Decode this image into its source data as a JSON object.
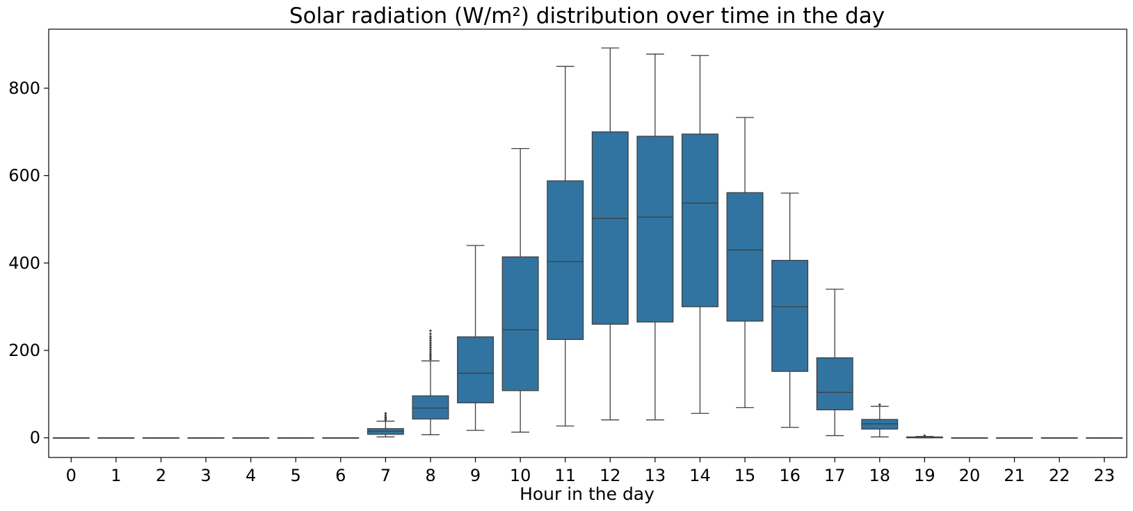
{
  "chart_data": {
    "type": "box",
    "title": "Solar radiation (W/m²) distribution over time in the day",
    "xlabel": "Hour in the day",
    "ylabel": "",
    "ylim": [
      -45,
      935
    ],
    "yticks": [
      0,
      200,
      400,
      600,
      800
    ],
    "grid": false,
    "box_color": "#3274a1",
    "line_color": "#3f3f3f",
    "categories": [
      "0",
      "1",
      "2",
      "3",
      "4",
      "5",
      "6",
      "7",
      "8",
      "9",
      "10",
      "11",
      "12",
      "13",
      "14",
      "15",
      "16",
      "17",
      "18",
      "19",
      "20",
      "21",
      "22",
      "23"
    ],
    "boxes": [
      {
        "whislo": 0,
        "q1": 0,
        "med": 0,
        "q3": 0,
        "whishi": 0,
        "fliers": []
      },
      {
        "whislo": 0,
        "q1": 0,
        "med": 0,
        "q3": 0,
        "whishi": 0,
        "fliers": []
      },
      {
        "whislo": 0,
        "q1": 0,
        "med": 0,
        "q3": 0,
        "whishi": 0,
        "fliers": []
      },
      {
        "whislo": 0,
        "q1": 0,
        "med": 0,
        "q3": 0,
        "whishi": 0,
        "fliers": []
      },
      {
        "whislo": 0,
        "q1": 0,
        "med": 0,
        "q3": 0,
        "whishi": 0,
        "fliers": []
      },
      {
        "whislo": 0,
        "q1": 0,
        "med": 0,
        "q3": 0,
        "whishi": 0,
        "fliers": []
      },
      {
        "whislo": 0,
        "q1": 0,
        "med": 0,
        "q3": 0,
        "whishi": 0,
        "fliers": []
      },
      {
        "whislo": 2,
        "q1": 8,
        "med": 15,
        "q3": 21,
        "whishi": 38,
        "fliers": [
          41,
          44,
          47,
          51,
          56
        ]
      },
      {
        "whislo": 7,
        "q1": 43,
        "med": 68,
        "q3": 96,
        "whishi": 176,
        "fliers": [
          180,
          184,
          188,
          192,
          197,
          202,
          207,
          212,
          217,
          222,
          227,
          232,
          238,
          245
        ]
      },
      {
        "whislo": 17,
        "q1": 80,
        "med": 148,
        "q3": 231,
        "whishi": 440,
        "fliers": []
      },
      {
        "whislo": 13,
        "q1": 108,
        "med": 247,
        "q3": 414,
        "whishi": 662,
        "fliers": []
      },
      {
        "whislo": 27,
        "q1": 225,
        "med": 403,
        "q3": 588,
        "whishi": 850,
        "fliers": []
      },
      {
        "whislo": 41,
        "q1": 260,
        "med": 502,
        "q3": 700,
        "whishi": 892,
        "fliers": []
      },
      {
        "whislo": 41,
        "q1": 265,
        "med": 505,
        "q3": 690,
        "whishi": 878,
        "fliers": []
      },
      {
        "whislo": 56,
        "q1": 300,
        "med": 537,
        "q3": 695,
        "whishi": 875,
        "fliers": []
      },
      {
        "whislo": 69,
        "q1": 267,
        "med": 430,
        "q3": 561,
        "whishi": 733,
        "fliers": []
      },
      {
        "whislo": 24,
        "q1": 152,
        "med": 300,
        "q3": 406,
        "whishi": 560,
        "fliers": []
      },
      {
        "whislo": 5,
        "q1": 64,
        "med": 104,
        "q3": 183,
        "whishi": 340,
        "fliers": []
      },
      {
        "whislo": 2,
        "q1": 20,
        "med": 32,
        "q3": 42,
        "whishi": 72,
        "fliers": [
          76
        ]
      },
      {
        "whislo": 0,
        "q1": 0,
        "med": 1,
        "q3": 2,
        "whishi": 3,
        "fliers": [
          5
        ]
      },
      {
        "whislo": 0,
        "q1": 0,
        "med": 0,
        "q3": 0,
        "whishi": 0,
        "fliers": []
      },
      {
        "whislo": 0,
        "q1": 0,
        "med": 0,
        "q3": 0,
        "whishi": 0,
        "fliers": []
      },
      {
        "whislo": 0,
        "q1": 0,
        "med": 0,
        "q3": 0,
        "whishi": 0,
        "fliers": []
      },
      {
        "whislo": 0,
        "q1": 0,
        "med": 0,
        "q3": 0,
        "whishi": 0,
        "fliers": []
      }
    ]
  }
}
